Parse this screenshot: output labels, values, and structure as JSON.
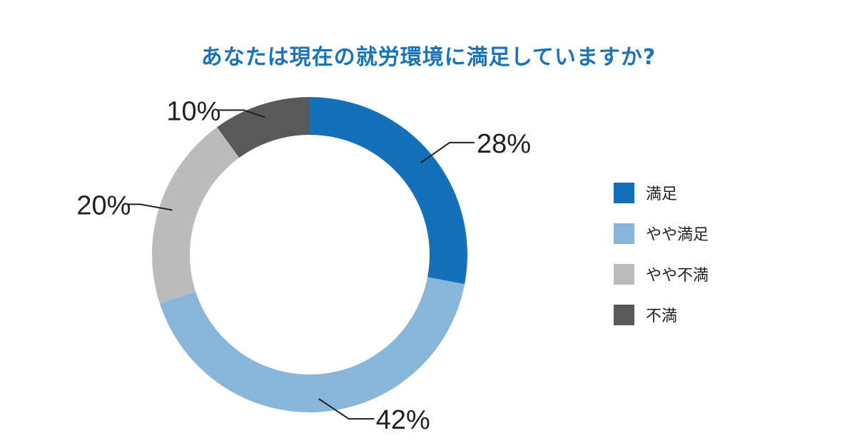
{
  "chart_data": {
    "type": "pie",
    "title": "あなたは現在の就労環境に満足していますか?",
    "categories": [
      "満足",
      "やや満足",
      "やや不満",
      "不満"
    ],
    "values": [
      28,
      42,
      20,
      10
    ],
    "value_labels": [
      "28%",
      "42%",
      "20%",
      "10%"
    ],
    "colors": [
      "#1470b8",
      "#88b6da",
      "#bcbbbc",
      "#5a585a"
    ],
    "legend_position": "right"
  }
}
